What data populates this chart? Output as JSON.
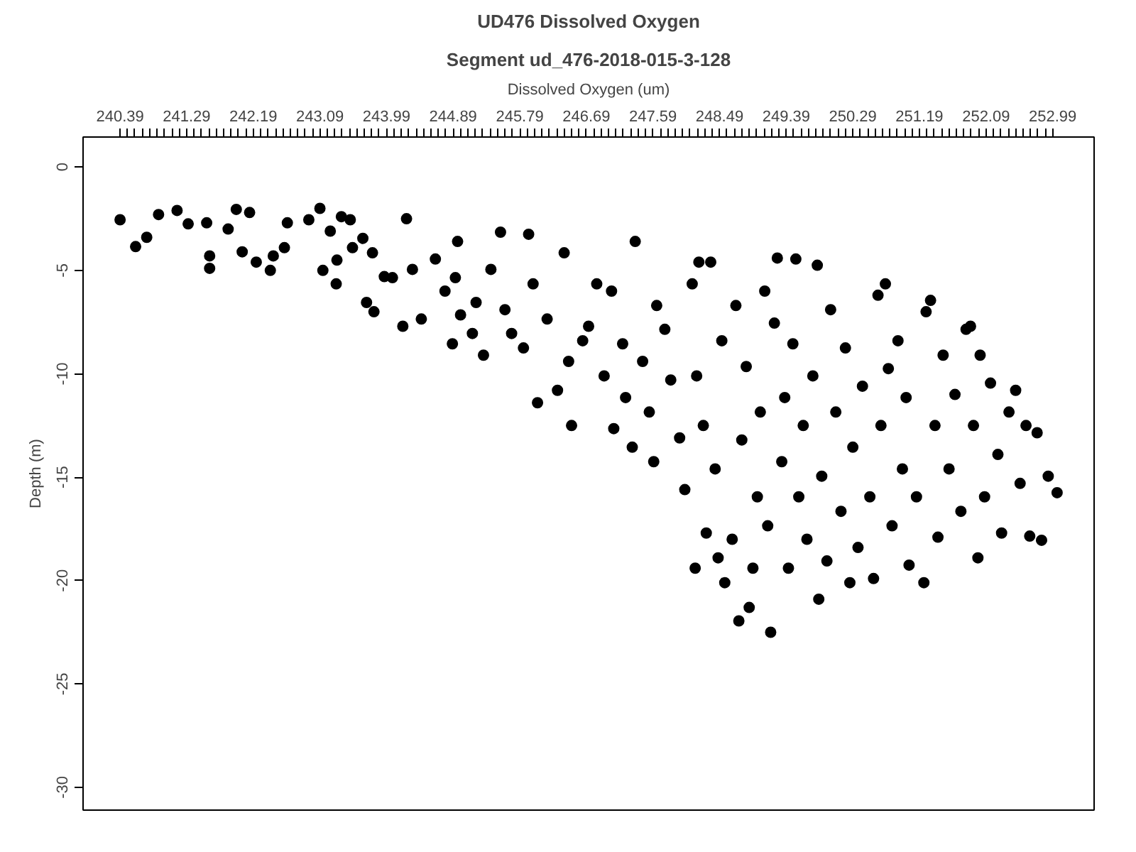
{
  "chart_data": {
    "type": "scatter",
    "title": "UD476 Dissolved Oxygen",
    "subtitle": "Segment ud_476-2018-015-3-128",
    "xlabel": "Dissolved Oxygen (um)",
    "ylabel": "Depth (m)",
    "marker": "circle",
    "grid": false,
    "xlim": [
      239.89,
      253.55
    ],
    "ylim": [
      -31.1,
      1.45
    ],
    "xticks": [
      240.39,
      {
        "value": 240.49,
        "label": null
      },
      {
        "value": 240.59,
        "label": null
      },
      {
        "value": 240.69,
        "label": null
      },
      {
        "value": 240.79,
        "label": null
      },
      {
        "value": 240.89,
        "label": null
      },
      {
        "value": 240.99,
        "label": null
      },
      {
        "value": 241.09,
        "label": null
      },
      {
        "value": 241.19,
        "label": null
      },
      241.29,
      {
        "value": 241.39,
        "label": null
      },
      {
        "value": 241.49,
        "label": null
      },
      {
        "value": 241.59,
        "label": null
      },
      {
        "value": 241.69,
        "label": null
      },
      {
        "value": 241.79,
        "label": null
      },
      {
        "value": 241.89,
        "label": null
      },
      {
        "value": 241.99,
        "label": null
      },
      {
        "value": 242.09,
        "label": null
      },
      242.19,
      {
        "value": 242.29,
        "label": null
      },
      {
        "value": 242.39,
        "label": null
      },
      {
        "value": 242.49,
        "label": null
      },
      {
        "value": 242.59,
        "label": null
      },
      {
        "value": 242.69,
        "label": null
      },
      {
        "value": 242.79,
        "label": null
      },
      {
        "value": 242.89,
        "label": null
      },
      {
        "value": 242.99,
        "label": null
      },
      243.09,
      {
        "value": 243.19,
        "label": null
      },
      {
        "value": 243.29,
        "label": null
      },
      {
        "value": 243.39,
        "label": null
      },
      {
        "value": 243.49,
        "label": null
      },
      {
        "value": 243.59,
        "label": null
      },
      {
        "value": 243.69,
        "label": null
      },
      {
        "value": 243.79,
        "label": null
      },
      {
        "value": 243.89,
        "label": null
      },
      243.99,
      {
        "value": 244.09,
        "label": null
      },
      {
        "value": 244.19,
        "label": null
      },
      {
        "value": 244.29,
        "label": null
      },
      {
        "value": 244.39,
        "label": null
      },
      {
        "value": 244.49,
        "label": null
      },
      {
        "value": 244.59,
        "label": null
      },
      {
        "value": 244.69,
        "label": null
      },
      {
        "value": 244.79,
        "label": null
      },
      244.89,
      {
        "value": 244.99,
        "label": null
      },
      {
        "value": 245.09,
        "label": null
      },
      {
        "value": 245.19,
        "label": null
      },
      {
        "value": 245.29,
        "label": null
      },
      {
        "value": 245.39,
        "label": null
      },
      {
        "value": 245.49,
        "label": null
      },
      {
        "value": 245.59,
        "label": null
      },
      {
        "value": 245.69,
        "label": null
      },
      245.79,
      {
        "value": 245.89,
        "label": null
      },
      {
        "value": 245.99,
        "label": null
      },
      {
        "value": 246.09,
        "label": null
      },
      {
        "value": 246.19,
        "label": null
      },
      {
        "value": 246.29,
        "label": null
      },
      {
        "value": 246.39,
        "label": null
      },
      {
        "value": 246.49,
        "label": null
      },
      {
        "value": 246.59,
        "label": null
      },
      246.69,
      {
        "value": 246.79,
        "label": null
      },
      {
        "value": 246.89,
        "label": null
      },
      {
        "value": 246.99,
        "label": null
      },
      {
        "value": 247.09,
        "label": null
      },
      {
        "value": 247.19,
        "label": null
      },
      {
        "value": 247.29,
        "label": null
      },
      {
        "value": 247.39,
        "label": null
      },
      {
        "value": 247.49,
        "label": null
      },
      247.59,
      {
        "value": 247.69,
        "label": null
      },
      {
        "value": 247.79,
        "label": null
      },
      {
        "value": 247.89,
        "label": null
      },
      {
        "value": 247.99,
        "label": null
      },
      {
        "value": 248.09,
        "label": null
      },
      {
        "value": 248.19,
        "label": null
      },
      {
        "value": 248.29,
        "label": null
      },
      {
        "value": 248.39,
        "label": null
      },
      248.49,
      {
        "value": 248.59,
        "label": null
      },
      {
        "value": 248.69,
        "label": null
      },
      {
        "value": 248.79,
        "label": null
      },
      {
        "value": 248.89,
        "label": null
      },
      {
        "value": 248.99,
        "label": null
      },
      {
        "value": 249.09,
        "label": null
      },
      {
        "value": 249.19,
        "label": null
      },
      {
        "value": 249.29,
        "label": null
      },
      249.39,
      {
        "value": 249.49,
        "label": null
      },
      {
        "value": 249.59,
        "label": null
      },
      {
        "value": 249.69,
        "label": null
      },
      {
        "value": 249.79,
        "label": null
      },
      {
        "value": 249.89,
        "label": null
      },
      {
        "value": 249.99,
        "label": null
      },
      {
        "value": 250.09,
        "label": null
      },
      {
        "value": 250.19,
        "label": null
      },
      250.29,
      {
        "value": 250.39,
        "label": null
      },
      {
        "value": 250.49,
        "label": null
      },
      {
        "value": 250.59,
        "label": null
      },
      {
        "value": 250.69,
        "label": null
      },
      {
        "value": 250.79,
        "label": null
      },
      {
        "value": 250.89,
        "label": null
      },
      {
        "value": 250.99,
        "label": null
      },
      {
        "value": 251.09,
        "label": null
      },
      251.19,
      {
        "value": 251.29,
        "label": null
      },
      {
        "value": 251.39,
        "label": null
      },
      {
        "value": 251.49,
        "label": null
      },
      {
        "value": 251.59,
        "label": null
      },
      {
        "value": 251.69,
        "label": null
      },
      {
        "value": 251.79,
        "label": null
      },
      {
        "value": 251.89,
        "label": null
      },
      {
        "value": 251.99,
        "label": null
      },
      252.09,
      {
        "value": 252.19,
        "label": null
      },
      {
        "value": 252.29,
        "label": null
      },
      {
        "value": 252.39,
        "label": null
      },
      {
        "value": 252.49,
        "label": null
      },
      {
        "value": 252.59,
        "label": null
      },
      {
        "value": 252.69,
        "label": null
      },
      {
        "value": 252.79,
        "label": null
      },
      {
        "value": 252.89,
        "label": null
      },
      252.99
    ],
    "yticks": [
      0,
      -5,
      -10,
      -15,
      -20,
      -25,
      -30
    ],
    "series": [
      {
        "color": "#000000",
        "x": [
          240.39,
          240.6,
          240.75,
          240.91,
          241.16,
          241.31,
          241.56,
          241.6,
          241.6,
          241.96,
          242.14,
          241.85,
          242.04,
          242.23,
          242.42,
          242.46,
          242.61,
          242.65,
          242.94,
          243.09,
          243.23,
          243.38,
          243.5,
          243.31,
          243.13,
          243.32,
          243.53,
          243.67,
          243.8,
          243.72,
          243.82,
          243.96,
          244.07,
          244.26,
          244.21,
          244.34,
          244.46,
          244.65,
          244.78,
          244.92,
          244.95,
          244.88,
          244.99,
          245.15,
          245.2,
          245.4,
          245.53,
          245.3,
          245.59,
          245.68,
          245.84,
          245.91,
          245.97,
          246.03,
          246.16,
          246.3,
          246.39,
          246.45,
          246.49,
          246.64,
          246.72,
          246.83,
          246.93,
          247.03,
          247.06,
          247.18,
          247.22,
          247.35,
          247.31,
          247.45,
          247.54,
          247.6,
          247.64,
          247.75,
          247.83,
          247.95,
          248.02,
          248.12,
          248.18,
          248.21,
          248.27,
          248.16,
          248.31,
          248.37,
          248.43,
          248.47,
          248.52,
          248.56,
          248.66,
          248.71,
          248.75,
          248.79,
          248.85,
          248.89,
          248.94,
          249.0,
          249.04,
          249.1,
          249.14,
          249.18,
          249.23,
          249.27,
          249.33,
          249.37,
          249.42,
          249.48,
          249.52,
          249.56,
          249.62,
          249.67,
          249.75,
          249.81,
          249.83,
          249.87,
          249.94,
          249.99,
          250.06,
          250.13,
          250.19,
          250.25,
          250.29,
          250.36,
          250.42,
          250.52,
          250.57,
          250.63,
          250.67,
          250.73,
          250.77,
          250.82,
          250.9,
          250.96,
          251.01,
          251.05,
          251.15,
          251.25,
          251.28,
          251.34,
          251.4,
          251.44,
          251.51,
          251.59,
          251.67,
          251.75,
          251.82,
          251.88,
          251.92,
          251.98,
          252.01,
          252.07,
          252.15,
          252.25,
          252.3,
          252.4,
          252.49,
          252.55,
          252.63,
          252.68,
          252.78,
          252.84,
          252.93,
          253.05
        ],
        "values": [
          -2.55,
          -3.85,
          -3.4,
          -2.3,
          -2.1,
          -2.75,
          -2.7,
          -4.3,
          -4.9,
          -2.05,
          -2.2,
          -3.0,
          -4.1,
          -4.6,
          -5.0,
          -4.3,
          -3.9,
          -2.7,
          -2.55,
          -2.0,
          -3.1,
          -2.4,
          -2.55,
          -5.65,
          -5.0,
          -4.5,
          -3.9,
          -3.45,
          -4.15,
          -6.55,
          -7.0,
          -5.3,
          -5.35,
          -2.5,
          -7.7,
          -4.95,
          -7.35,
          -4.45,
          -6.0,
          -5.35,
          -3.6,
          -8.55,
          -7.15,
          -8.05,
          -6.55,
          -4.95,
          -3.15,
          -9.1,
          -6.9,
          -8.05,
          -8.75,
          -3.25,
          -5.65,
          -11.4,
          -7.35,
          -10.8,
          -4.15,
          -9.4,
          -12.5,
          -8.4,
          -7.7,
          -5.65,
          -10.1,
          -6.0,
          -12.65,
          -8.55,
          -11.15,
          -3.6,
          -13.55,
          -9.4,
          -11.85,
          -14.25,
          -6.7,
          -7.85,
          -10.3,
          -13.1,
          -15.6,
          -5.65,
          -10.1,
          -4.6,
          -12.5,
          -19.4,
          -17.7,
          -4.6,
          -14.6,
          -18.9,
          -8.4,
          -20.1,
          -18.0,
          -6.7,
          -21.95,
          -13.2,
          -9.65,
          -21.3,
          -19.4,
          -15.95,
          -11.85,
          -6.0,
          -17.35,
          -22.5,
          -7.55,
          -4.4,
          -14.25,
          -11.15,
          -19.4,
          -8.55,
          -4.45,
          -15.95,
          -12.5,
          -18.0,
          -10.1,
          -4.75,
          -20.9,
          -14.95,
          -19.05,
          -6.9,
          -11.85,
          -16.65,
          -8.75,
          -20.1,
          -13.55,
          -18.4,
          -10.6,
          -15.95,
          -19.9,
          -6.2,
          -12.5,
          -5.65,
          -9.75,
          -17.35,
          -8.4,
          -14.6,
          -11.15,
          -19.25,
          -15.95,
          -20.1,
          -7.0,
          -6.45,
          -12.5,
          -17.9,
          -9.1,
          -14.6,
          -11.0,
          -16.65,
          -7.85,
          -7.7,
          -12.5,
          -18.9,
          -9.1,
          -15.95,
          -10.45,
          -13.9,
          -17.7,
          -11.85,
          -10.8,
          -15.3,
          -12.5,
          -17.85,
          -12.85,
          -18.05,
          -14.95,
          -15.75
        ]
      }
    ]
  }
}
